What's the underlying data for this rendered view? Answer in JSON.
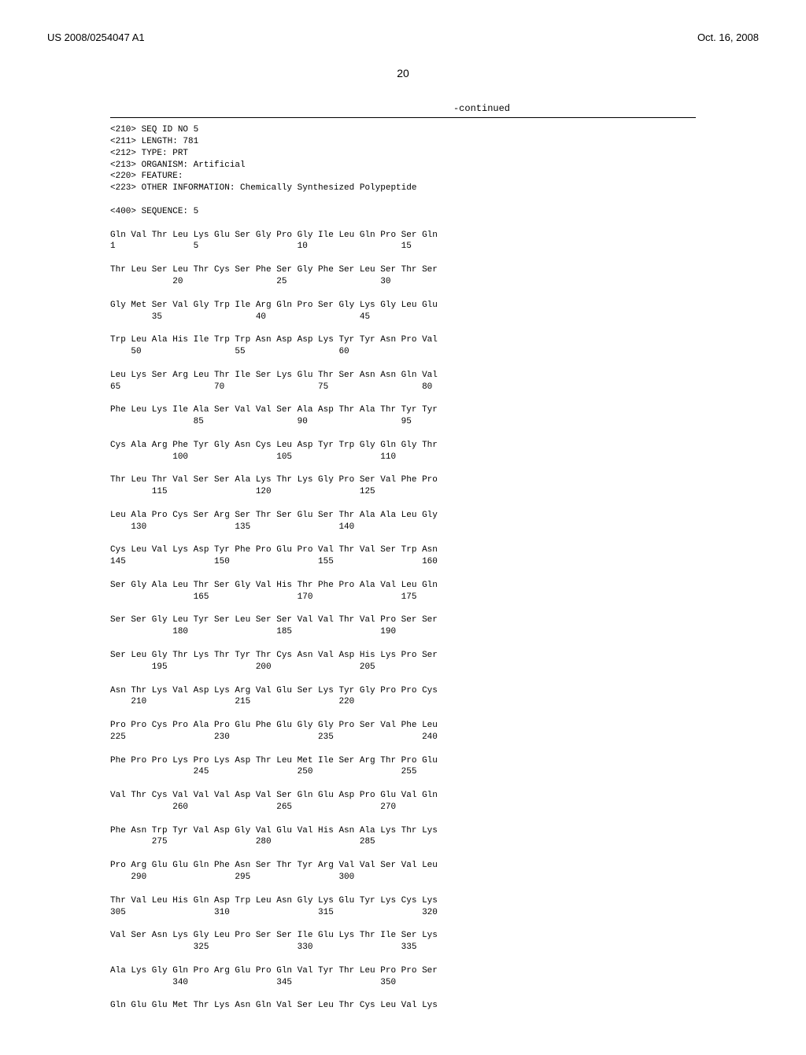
{
  "header": {
    "left": "US 2008/0254047 A1",
    "right": "Oct. 16, 2008"
  },
  "page_number": "20",
  "continued_label": "-continued",
  "seq_header": [
    "<210> SEQ ID NO 5",
    "<211> LENGTH: 781",
    "<212> TYPE: PRT",
    "<213> ORGANISM: Artificial",
    "<220> FEATURE:",
    "<223> OTHER INFORMATION: Chemically Synthesized Polypeptide",
    "",
    "<400> SEQUENCE: 5"
  ],
  "rows": [
    {
      "aa": "Gln Val Thr Leu Lys Glu Ser Gly Pro Gly Ile Leu Gln Pro Ser Gln",
      "nm": "1               5                   10                  15"
    },
    {
      "aa": "Thr Leu Ser Leu Thr Cys Ser Phe Ser Gly Phe Ser Leu Ser Thr Ser",
      "nm": "            20                  25                  30"
    },
    {
      "aa": "Gly Met Ser Val Gly Trp Ile Arg Gln Pro Ser Gly Lys Gly Leu Glu",
      "nm": "        35                  40                  45"
    },
    {
      "aa": "Trp Leu Ala His Ile Trp Trp Asn Asp Asp Lys Tyr Tyr Asn Pro Val",
      "nm": "    50                  55                  60"
    },
    {
      "aa": "Leu Lys Ser Arg Leu Thr Ile Ser Lys Glu Thr Ser Asn Asn Gln Val",
      "nm": "65                  70                  75                  80"
    },
    {
      "aa": "Phe Leu Lys Ile Ala Ser Val Val Ser Ala Asp Thr Ala Thr Tyr Tyr",
      "nm": "                85                  90                  95"
    },
    {
      "aa": "Cys Ala Arg Phe Tyr Gly Asn Cys Leu Asp Tyr Trp Gly Gln Gly Thr",
      "nm": "            100                 105                 110"
    },
    {
      "aa": "Thr Leu Thr Val Ser Ser Ala Lys Thr Lys Gly Pro Ser Val Phe Pro",
      "nm": "        115                 120                 125"
    },
    {
      "aa": "Leu Ala Pro Cys Ser Arg Ser Thr Ser Glu Ser Thr Ala Ala Leu Gly",
      "nm": "    130                 135                 140"
    },
    {
      "aa": "Cys Leu Val Lys Asp Tyr Phe Pro Glu Pro Val Thr Val Ser Trp Asn",
      "nm": "145                 150                 155                 160"
    },
    {
      "aa": "Ser Gly Ala Leu Thr Ser Gly Val His Thr Phe Pro Ala Val Leu Gln",
      "nm": "                165                 170                 175"
    },
    {
      "aa": "Ser Ser Gly Leu Tyr Ser Leu Ser Ser Val Val Thr Val Pro Ser Ser",
      "nm": "            180                 185                 190"
    },
    {
      "aa": "Ser Leu Gly Thr Lys Thr Tyr Thr Cys Asn Val Asp His Lys Pro Ser",
      "nm": "        195                 200                 205"
    },
    {
      "aa": "Asn Thr Lys Val Asp Lys Arg Val Glu Ser Lys Tyr Gly Pro Pro Cys",
      "nm": "    210                 215                 220"
    },
    {
      "aa": "Pro Pro Cys Pro Ala Pro Glu Phe Glu Gly Gly Pro Ser Val Phe Leu",
      "nm": "225                 230                 235                 240"
    },
    {
      "aa": "Phe Pro Pro Lys Pro Lys Asp Thr Leu Met Ile Ser Arg Thr Pro Glu",
      "nm": "                245                 250                 255"
    },
    {
      "aa": "Val Thr Cys Val Val Val Asp Val Ser Gln Glu Asp Pro Glu Val Gln",
      "nm": "            260                 265                 270"
    },
    {
      "aa": "Phe Asn Trp Tyr Val Asp Gly Val Glu Val His Asn Ala Lys Thr Lys",
      "nm": "        275                 280                 285"
    },
    {
      "aa": "Pro Arg Glu Glu Gln Phe Asn Ser Thr Tyr Arg Val Val Ser Val Leu",
      "nm": "    290                 295                 300"
    },
    {
      "aa": "Thr Val Leu His Gln Asp Trp Leu Asn Gly Lys Glu Tyr Lys Cys Lys",
      "nm": "305                 310                 315                 320"
    },
    {
      "aa": "Val Ser Asn Lys Gly Leu Pro Ser Ser Ile Glu Lys Thr Ile Ser Lys",
      "nm": "                325                 330                 335"
    },
    {
      "aa": "Ala Lys Gly Gln Pro Arg Glu Pro Gln Val Tyr Thr Leu Pro Pro Ser",
      "nm": "            340                 345                 350"
    },
    {
      "aa": "Gln Glu Glu Met Thr Lys Asn Gln Val Ser Leu Thr Cys Leu Val Lys",
      "nm": ""
    }
  ],
  "style": {
    "background_color": "#ffffff",
    "text_color": "#000000",
    "mono_font": "Courier New",
    "header_font": "Arial",
    "seq_fontsize": 11,
    "header_fontsize": 13,
    "pagenum_fontsize": 14
  }
}
